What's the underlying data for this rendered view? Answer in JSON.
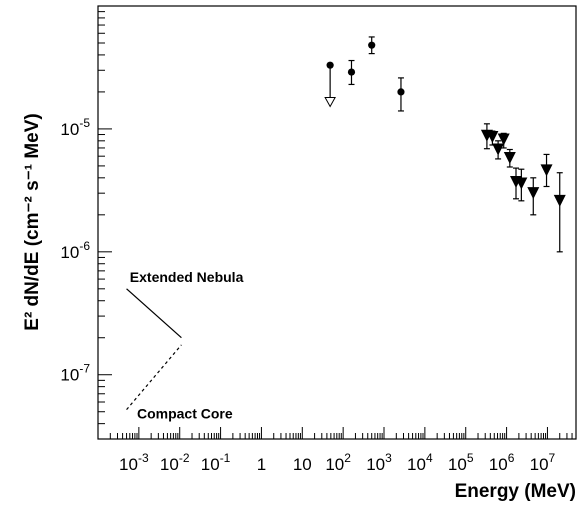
{
  "chart_data": {
    "type": "scatter",
    "title": "",
    "xlabel": "Energy (MeV)",
    "ylabel": "E² dN/dE (cm⁻² s⁻¹ MeV)",
    "xscale": "log",
    "yscale": "log",
    "xlim": [
      0.0001,
      50000000
    ],
    "ylim": [
      3e-08,
      0.0001
    ],
    "grid": false,
    "x_ticks": [
      {
        "value": 0.001,
        "base": "10",
        "exp": "-3"
      },
      {
        "value": 0.01,
        "base": "10",
        "exp": "-2"
      },
      {
        "value": 0.1,
        "base": "10",
        "exp": "-1"
      },
      {
        "value": 1,
        "base": "1",
        "exp": ""
      },
      {
        "value": 10,
        "base": "10",
        "exp": ""
      },
      {
        "value": 100,
        "base": "10",
        "exp": "2"
      },
      {
        "value": 1000,
        "base": "10",
        "exp": "3"
      },
      {
        "value": 10000,
        "base": "10",
        "exp": "4"
      },
      {
        "value": 100000,
        "base": "10",
        "exp": "5"
      },
      {
        "value": 1000000,
        "base": "10",
        "exp": "6"
      },
      {
        "value": 10000000,
        "base": "10",
        "exp": "7"
      }
    ],
    "y_ticks": [
      {
        "value": 1e-07,
        "base": "10",
        "exp": "-7"
      },
      {
        "value": 1e-06,
        "base": "10",
        "exp": "-6"
      },
      {
        "value": 1e-05,
        "base": "10",
        "exp": "-5"
      }
    ],
    "series": [
      {
        "marker": "circle",
        "points": [
          {
            "x": 160,
            "y": 2.9e-05,
            "ylow": 2.3e-05,
            "yhigh": 3.6e-05
          },
          {
            "x": 500,
            "y": 4.8e-05,
            "ylow": 4.1e-05,
            "yhigh": 5.6e-05
          },
          {
            "x": 2600,
            "y": 2e-05,
            "ylow": 1.4e-05,
            "yhigh": 2.6e-05
          }
        ]
      },
      {
        "marker": "circle-upper-limit",
        "points": [
          {
            "x": 48,
            "y": 3.3e-05,
            "limit": 1.55e-05
          }
        ]
      },
      {
        "marker": "triangle-down",
        "points": [
          {
            "x": 330000,
            "y": 8.8e-06,
            "ylow": 6.9e-06,
            "yhigh": 1.1e-05
          },
          {
            "x": 450000,
            "y": 8.6e-06,
            "ylow": 7.4e-06,
            "yhigh": 9.6e-06
          },
          {
            "x": 620000,
            "y": 6.8e-06,
            "ylow": 5.7e-06,
            "yhigh": 8e-06
          },
          {
            "x": 850000,
            "y": 8.2e-06,
            "ylow": 7e-06,
            "yhigh": 9.2e-06
          },
          {
            "x": 1200000,
            "y": 5.8e-06,
            "ylow": 4.9e-06,
            "yhigh": 6.8e-06
          },
          {
            "x": 1700000,
            "y": 3.7e-06,
            "ylow": 2.7e-06,
            "yhigh": 4.8e-06
          },
          {
            "x": 2300000,
            "y": 3.6e-06,
            "ylow": 2.6e-06,
            "yhigh": 4.7e-06
          },
          {
            "x": 4500000,
            "y": 3e-06,
            "ylow": 2e-06,
            "yhigh": 4e-06
          },
          {
            "x": 9500000,
            "y": 4.6e-06,
            "ylow": 3.4e-06,
            "yhigh": 6.2e-06
          },
          {
            "x": 20000000,
            "y": 2.6e-06,
            "ylow": 1e-06,
            "yhigh": 4.4e-06
          }
        ]
      }
    ],
    "lines": [
      {
        "name": "Extended Nebula",
        "style": "solid",
        "points": [
          [
            0.0005,
            5e-07
          ],
          [
            0.011,
            2e-07
          ]
        ]
      },
      {
        "name": "Compact Core",
        "style": "dashed",
        "points": [
          [
            0.0005,
            5.2e-08
          ],
          [
            0.011,
            1.75e-07
          ]
        ]
      }
    ],
    "annotations": [
      {
        "text": "Extended Nebula",
        "x": 0.0006,
        "y": 5.7e-07
      },
      {
        "text": "Compact Core",
        "x": 0.0009,
        "y": 4.4e-08
      }
    ]
  }
}
